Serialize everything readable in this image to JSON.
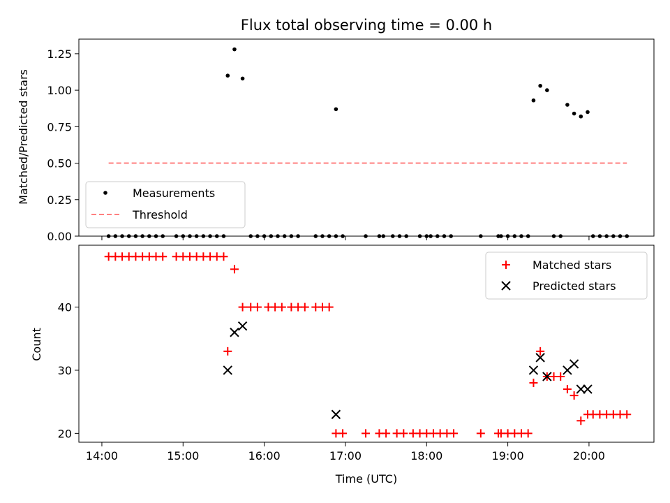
{
  "colors": {
    "measurement": "#000000",
    "threshold": "#ff8080",
    "matched": "#ff0000",
    "predicted": "#000000"
  },
  "chart_data": [
    {
      "type": "scatter",
      "title": "Flux total observing time = 0.00 h",
      "xlabel": "",
      "ylabel": "Matched/Predicted stars",
      "ylim": [
        0,
        1.35
      ],
      "yticks": [
        0.0,
        0.25,
        0.5,
        0.75,
        1.0,
        1.25
      ],
      "ytick_labels": [
        "0.00",
        "0.25",
        "0.50",
        "0.75",
        "1.00",
        "1.25"
      ],
      "legend_position": "lower-left",
      "series": [
        {
          "name": "Measurements",
          "kind": "dots",
          "points": [
            [
              "14:05",
              0
            ],
            [
              "14:10",
              0
            ],
            [
              "14:15",
              0
            ],
            [
              "14:20",
              0
            ],
            [
              "14:25",
              0
            ],
            [
              "14:30",
              0
            ],
            [
              "14:35",
              0
            ],
            [
              "14:40",
              0
            ],
            [
              "14:45",
              0
            ],
            [
              "14:55",
              0
            ],
            [
              "15:00",
              0
            ],
            [
              "15:05",
              0
            ],
            [
              "15:10",
              0
            ],
            [
              "15:15",
              0
            ],
            [
              "15:20",
              0
            ],
            [
              "15:25",
              0
            ],
            [
              "15:30",
              0
            ],
            [
              "15:33",
              1.1
            ],
            [
              "15:38",
              1.28
            ],
            [
              "15:44",
              1.08
            ],
            [
              "15:50",
              0
            ],
            [
              "15:55",
              0
            ],
            [
              "16:00",
              0
            ],
            [
              "16:05",
              0
            ],
            [
              "16:10",
              0
            ],
            [
              "16:15",
              0
            ],
            [
              "16:20",
              0
            ],
            [
              "16:25",
              0
            ],
            [
              "16:38",
              0
            ],
            [
              "16:43",
              0
            ],
            [
              "16:48",
              0
            ],
            [
              "16:53",
              0
            ],
            [
              "16:58",
              0
            ],
            [
              "16:53",
              0.87
            ],
            [
              "17:15",
              0
            ],
            [
              "17:25",
              0
            ],
            [
              "17:28",
              0
            ],
            [
              "17:35",
              0
            ],
            [
              "17:40",
              0
            ],
            [
              "17:45",
              0
            ],
            [
              "17:55",
              0
            ],
            [
              "18:00",
              0
            ],
            [
              "18:03",
              0
            ],
            [
              "18:08",
              0
            ],
            [
              "18:13",
              0
            ],
            [
              "18:18",
              0
            ],
            [
              "18:40",
              0
            ],
            [
              "18:53",
              0
            ],
            [
              "18:55",
              0
            ],
            [
              "19:00",
              0
            ],
            [
              "19:05",
              0
            ],
            [
              "19:10",
              0
            ],
            [
              "19:15",
              0
            ],
            [
              "19:19",
              0.93
            ],
            [
              "19:24",
              1.03
            ],
            [
              "19:29",
              1.0
            ],
            [
              "19:34",
              0
            ],
            [
              "19:39",
              0
            ],
            [
              "19:44",
              0.9
            ],
            [
              "19:49",
              0.84
            ],
            [
              "19:54",
              0.82
            ],
            [
              "19:59",
              0.85
            ],
            [
              "20:03",
              0
            ],
            [
              "20:08",
              0
            ],
            [
              "20:13",
              0
            ],
            [
              "20:18",
              0
            ],
            [
              "20:23",
              0
            ],
            [
              "20:28",
              0
            ]
          ]
        },
        {
          "name": "Threshold",
          "kind": "dashed-line",
          "points": [
            [
              "14:05",
              0.5
            ],
            [
              "20:28",
              0.5
            ]
          ]
        }
      ]
    },
    {
      "type": "scatter",
      "title": "",
      "xlabel": "Time (UTC)",
      "ylabel": "Count",
      "ylim": [
        18.6,
        49.8
      ],
      "yticks": [
        20,
        30,
        40
      ],
      "ytick_labels": [
        "20",
        "30",
        "40"
      ],
      "xticks": [
        "14:00",
        "15:00",
        "16:00",
        "17:00",
        "18:00",
        "19:00",
        "20:00"
      ],
      "xtick_labels": [
        "14:00",
        "15:00",
        "16:00",
        "17:00",
        "18:00",
        "19:00",
        "20:00"
      ],
      "legend_position": "upper-right",
      "series": [
        {
          "name": "Matched stars",
          "kind": "plus",
          "points": [
            [
              "14:05",
              48
            ],
            [
              "14:10",
              48
            ],
            [
              "14:15",
              48
            ],
            [
              "14:20",
              48
            ],
            [
              "14:25",
              48
            ],
            [
              "14:30",
              48
            ],
            [
              "14:35",
              48
            ],
            [
              "14:40",
              48
            ],
            [
              "14:45",
              48
            ],
            [
              "14:55",
              48
            ],
            [
              "15:00",
              48
            ],
            [
              "15:05",
              48
            ],
            [
              "15:10",
              48
            ],
            [
              "15:15",
              48
            ],
            [
              "15:20",
              48
            ],
            [
              "15:25",
              48
            ],
            [
              "15:30",
              48
            ],
            [
              "15:33",
              33
            ],
            [
              "15:38",
              46
            ],
            [
              "15:44",
              40
            ],
            [
              "15:50",
              40
            ],
            [
              "15:55",
              40
            ],
            [
              "16:03",
              40
            ],
            [
              "16:08",
              40
            ],
            [
              "16:13",
              40
            ],
            [
              "16:20",
              40
            ],
            [
              "16:25",
              40
            ],
            [
              "16:30",
              40
            ],
            [
              "16:38",
              40
            ],
            [
              "16:43",
              40
            ],
            [
              "16:48",
              40
            ],
            [
              "16:53",
              20
            ],
            [
              "16:58",
              20
            ],
            [
              "17:15",
              20
            ],
            [
              "17:25",
              20
            ],
            [
              "17:30",
              20
            ],
            [
              "17:38",
              20
            ],
            [
              "17:43",
              20
            ],
            [
              "17:50",
              20
            ],
            [
              "17:55",
              20
            ],
            [
              "18:00",
              20
            ],
            [
              "18:05",
              20
            ],
            [
              "18:10",
              20
            ],
            [
              "18:15",
              20
            ],
            [
              "18:20",
              20
            ],
            [
              "18:40",
              20
            ],
            [
              "18:53",
              20
            ],
            [
              "18:55",
              20
            ],
            [
              "19:00",
              20
            ],
            [
              "19:05",
              20
            ],
            [
              "19:10",
              20
            ],
            [
              "19:15",
              20
            ],
            [
              "19:19",
              28
            ],
            [
              "19:24",
              33
            ],
            [
              "19:29",
              29
            ],
            [
              "19:34",
              29
            ],
            [
              "19:39",
              29
            ],
            [
              "19:44",
              27
            ],
            [
              "19:49",
              26
            ],
            [
              "19:54",
              22
            ],
            [
              "19:59",
              23
            ],
            [
              "20:03",
              23
            ],
            [
              "20:08",
              23
            ],
            [
              "20:13",
              23
            ],
            [
              "20:18",
              23
            ],
            [
              "20:23",
              23
            ],
            [
              "20:28",
              23
            ]
          ]
        },
        {
          "name": "Predicted stars",
          "kind": "cross",
          "points": [
            [
              "15:33",
              30
            ],
            [
              "15:38",
              36
            ],
            [
              "15:44",
              37
            ],
            [
              "16:53",
              23
            ],
            [
              "19:19",
              30
            ],
            [
              "19:24",
              32
            ],
            [
              "19:29",
              29
            ],
            [
              "19:44",
              30
            ],
            [
              "19:49",
              31
            ],
            [
              "19:54",
              27
            ],
            [
              "19:59",
              27
            ]
          ]
        }
      ]
    }
  ]
}
